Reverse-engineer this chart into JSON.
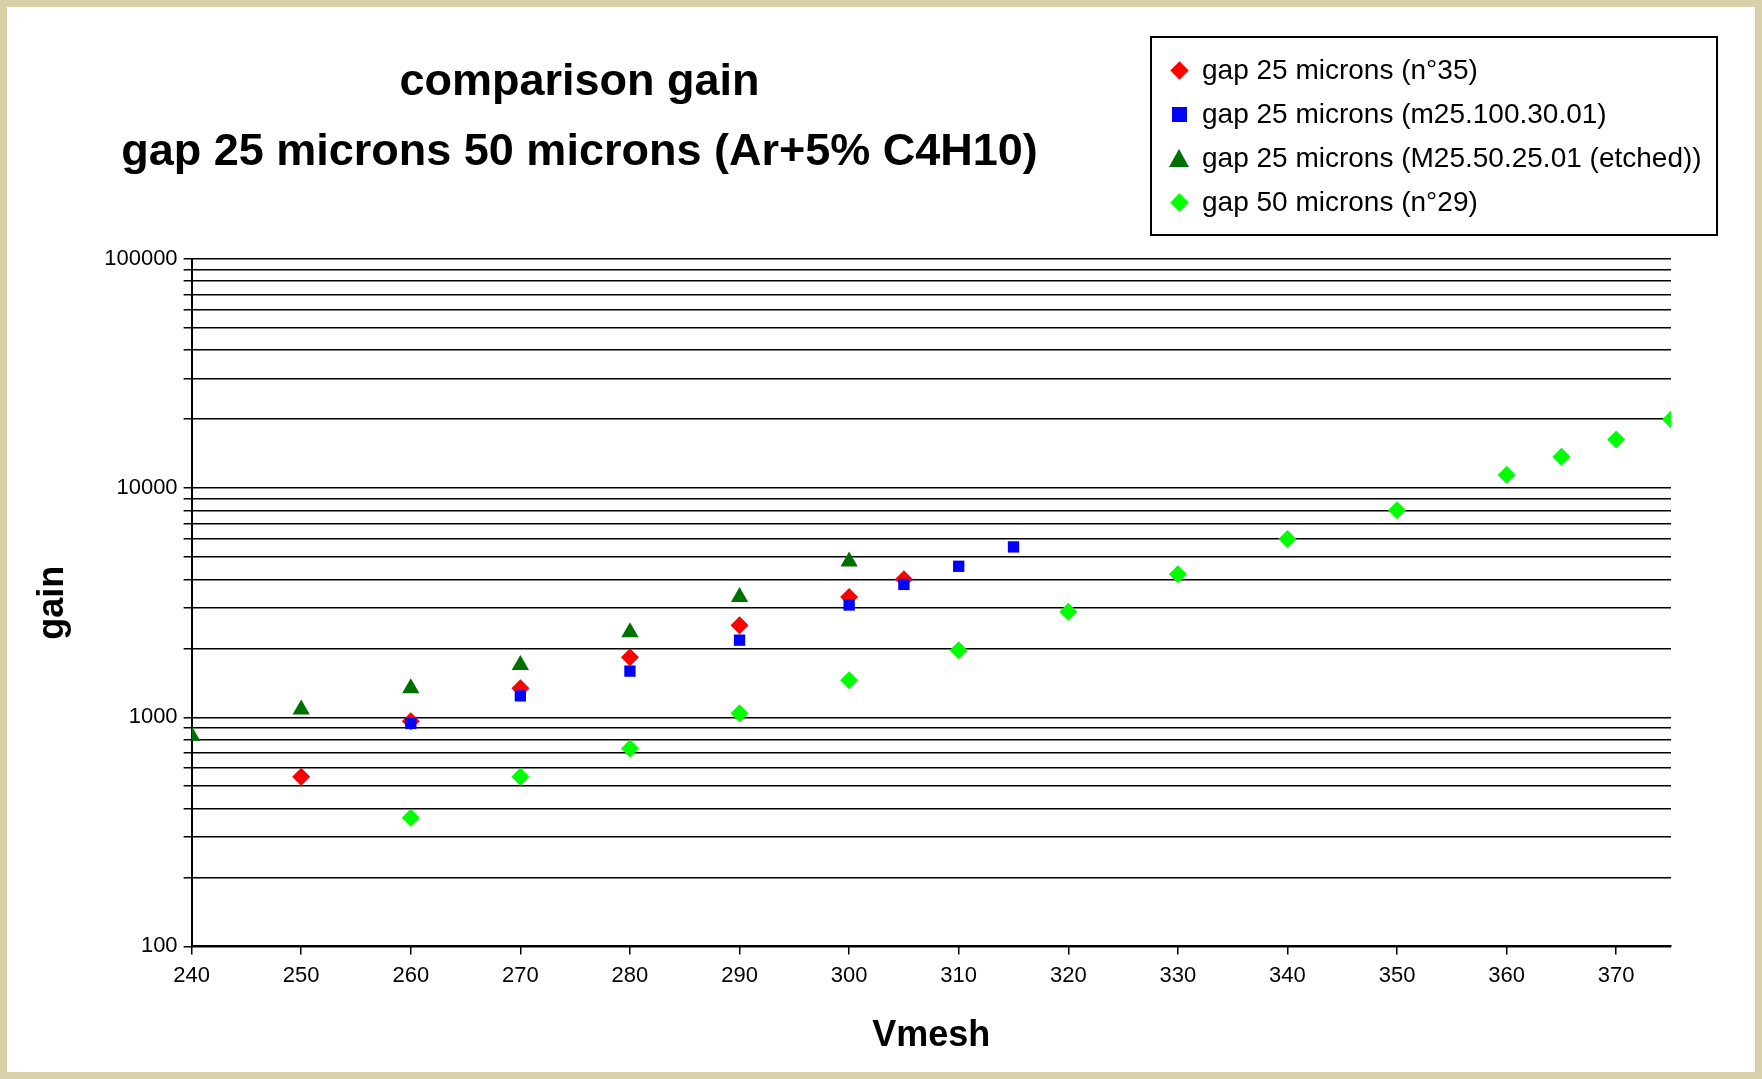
{
  "chart_data": {
    "type": "scatter",
    "title": "comparison gain\ngap 25 microns 50 microns (Ar+5% C4H10)",
    "xlabel": "Vmesh",
    "ylabel": "gain",
    "log": "y",
    "grid": "y",
    "legend": "top right",
    "xlim": [
      240,
      375
    ],
    "xticks": [
      240,
      250,
      260,
      270,
      280,
      290,
      300,
      310,
      320,
      330,
      340,
      350,
      360,
      370
    ],
    "ylim": [
      100,
      100000
    ],
    "yticks": [
      100,
      {
        "value": 200,
        "label": null
      },
      {
        "value": 300,
        "label": null
      },
      {
        "value": 400,
        "label": null
      },
      {
        "value": 500,
        "label": null
      },
      {
        "value": 600,
        "label": null
      },
      {
        "value": 700,
        "label": null
      },
      {
        "value": 800,
        "label": null
      },
      {
        "value": 900,
        "label": null
      },
      1000,
      {
        "value": 2000,
        "label": null
      },
      {
        "value": 3000,
        "label": null
      },
      {
        "value": 4000,
        "label": null
      },
      {
        "value": 5000,
        "label": null
      },
      {
        "value": 6000,
        "label": null
      },
      {
        "value": 7000,
        "label": null
      },
      {
        "value": 8000,
        "label": null
      },
      {
        "value": 9000,
        "label": null
      },
      10000,
      {
        "value": 20000,
        "label": null
      },
      {
        "value": 30000,
        "label": null
      },
      {
        "value": 40000,
        "label": null
      },
      {
        "value": 50000,
        "label": null
      },
      {
        "value": 60000,
        "label": null
      },
      {
        "value": 70000,
        "label": null
      },
      {
        "value": 80000,
        "label": null
      },
      {
        "value": 90000,
        "label": null
      },
      100000
    ],
    "series": [
      {
        "name": "gap 25 microns (n°35)",
        "color": "#ff0000",
        "marker": "diamond",
        "x": [
          250,
          260,
          270,
          280,
          290,
          300,
          305
        ],
        "values": [
          550,
          960,
          1340,
          1830,
          2520,
          3350,
          4000
        ]
      },
      {
        "name": "gap 25 microns (m25.100.30.01)",
        "color": "#0000ff",
        "marker": "square",
        "x": [
          260,
          270,
          280,
          290,
          300,
          305,
          310,
          315
        ],
        "values": [
          940,
          1240,
          1590,
          2170,
          3090,
          3800,
          4560,
          5540
        ]
      },
      {
        "name": "gap 25 microns (M25.50.25.01 (etched))",
        "color": "#007000",
        "marker": "triangle",
        "x": [
          240,
          250,
          260,
          270,
          280,
          290,
          300
        ],
        "values": [
          830,
          1080,
          1340,
          1690,
          2350,
          3350,
          4780
        ]
      },
      {
        "name": "gap 50 microns (n°29)",
        "color": "#00ff00",
        "marker": "diamond",
        "x": [
          260,
          270,
          280,
          290,
          300,
          310,
          320,
          330,
          340,
          350,
          360,
          365,
          370,
          375
        ],
        "values": [
          364,
          550,
          730,
          1040,
          1450,
          1960,
          2890,
          4210,
          6000,
          8000,
          11400,
          13700,
          16300,
          19950
        ]
      }
    ]
  }
}
